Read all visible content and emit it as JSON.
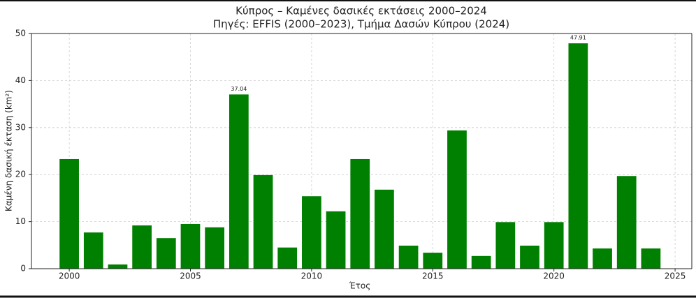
{
  "chart_data": {
    "type": "bar",
    "title": "Κύπρος – Καμένες δασικές εκτάσεις 2000–2024",
    "subtitle": "Πηγές: EFFIS (2000–2023), Τμήμα Δασών Κύπρου (2024)",
    "x_label": "Έτος",
    "y_label": "Καμένη δασική έκταση (km²)",
    "x": [
      2000,
      2001,
      2002,
      2003,
      2004,
      2005,
      2006,
      2007,
      2008,
      2009,
      2010,
      2011,
      2012,
      2013,
      2014,
      2015,
      2016,
      2017,
      2018,
      2019,
      2020,
      2021,
      2022,
      2023,
      2024
    ],
    "values": [
      23.3,
      7.7,
      0.9,
      9.2,
      6.5,
      9.5,
      8.8,
      37.04,
      19.9,
      4.5,
      15.4,
      12.2,
      23.3,
      16.8,
      4.9,
      3.4,
      29.4,
      2.7,
      9.9,
      4.9,
      9.9,
      47.91,
      4.3,
      19.7,
      4.3
    ],
    "value_labels": [
      null,
      null,
      null,
      null,
      null,
      null,
      null,
      "37.04",
      null,
      null,
      null,
      null,
      null,
      null,
      null,
      null,
      null,
      null,
      null,
      null,
      null,
      "47.91",
      null,
      null,
      null
    ],
    "color": "#008000",
    "xlim": [
      1998.44,
      2025.69
    ],
    "xticks": [
      2000,
      2005,
      2010,
      2015,
      2020,
      2025
    ],
    "ylim": [
      0,
      50
    ],
    "yticks": [
      0,
      10,
      20,
      30,
      40,
      50
    ],
    "grid": true
  }
}
